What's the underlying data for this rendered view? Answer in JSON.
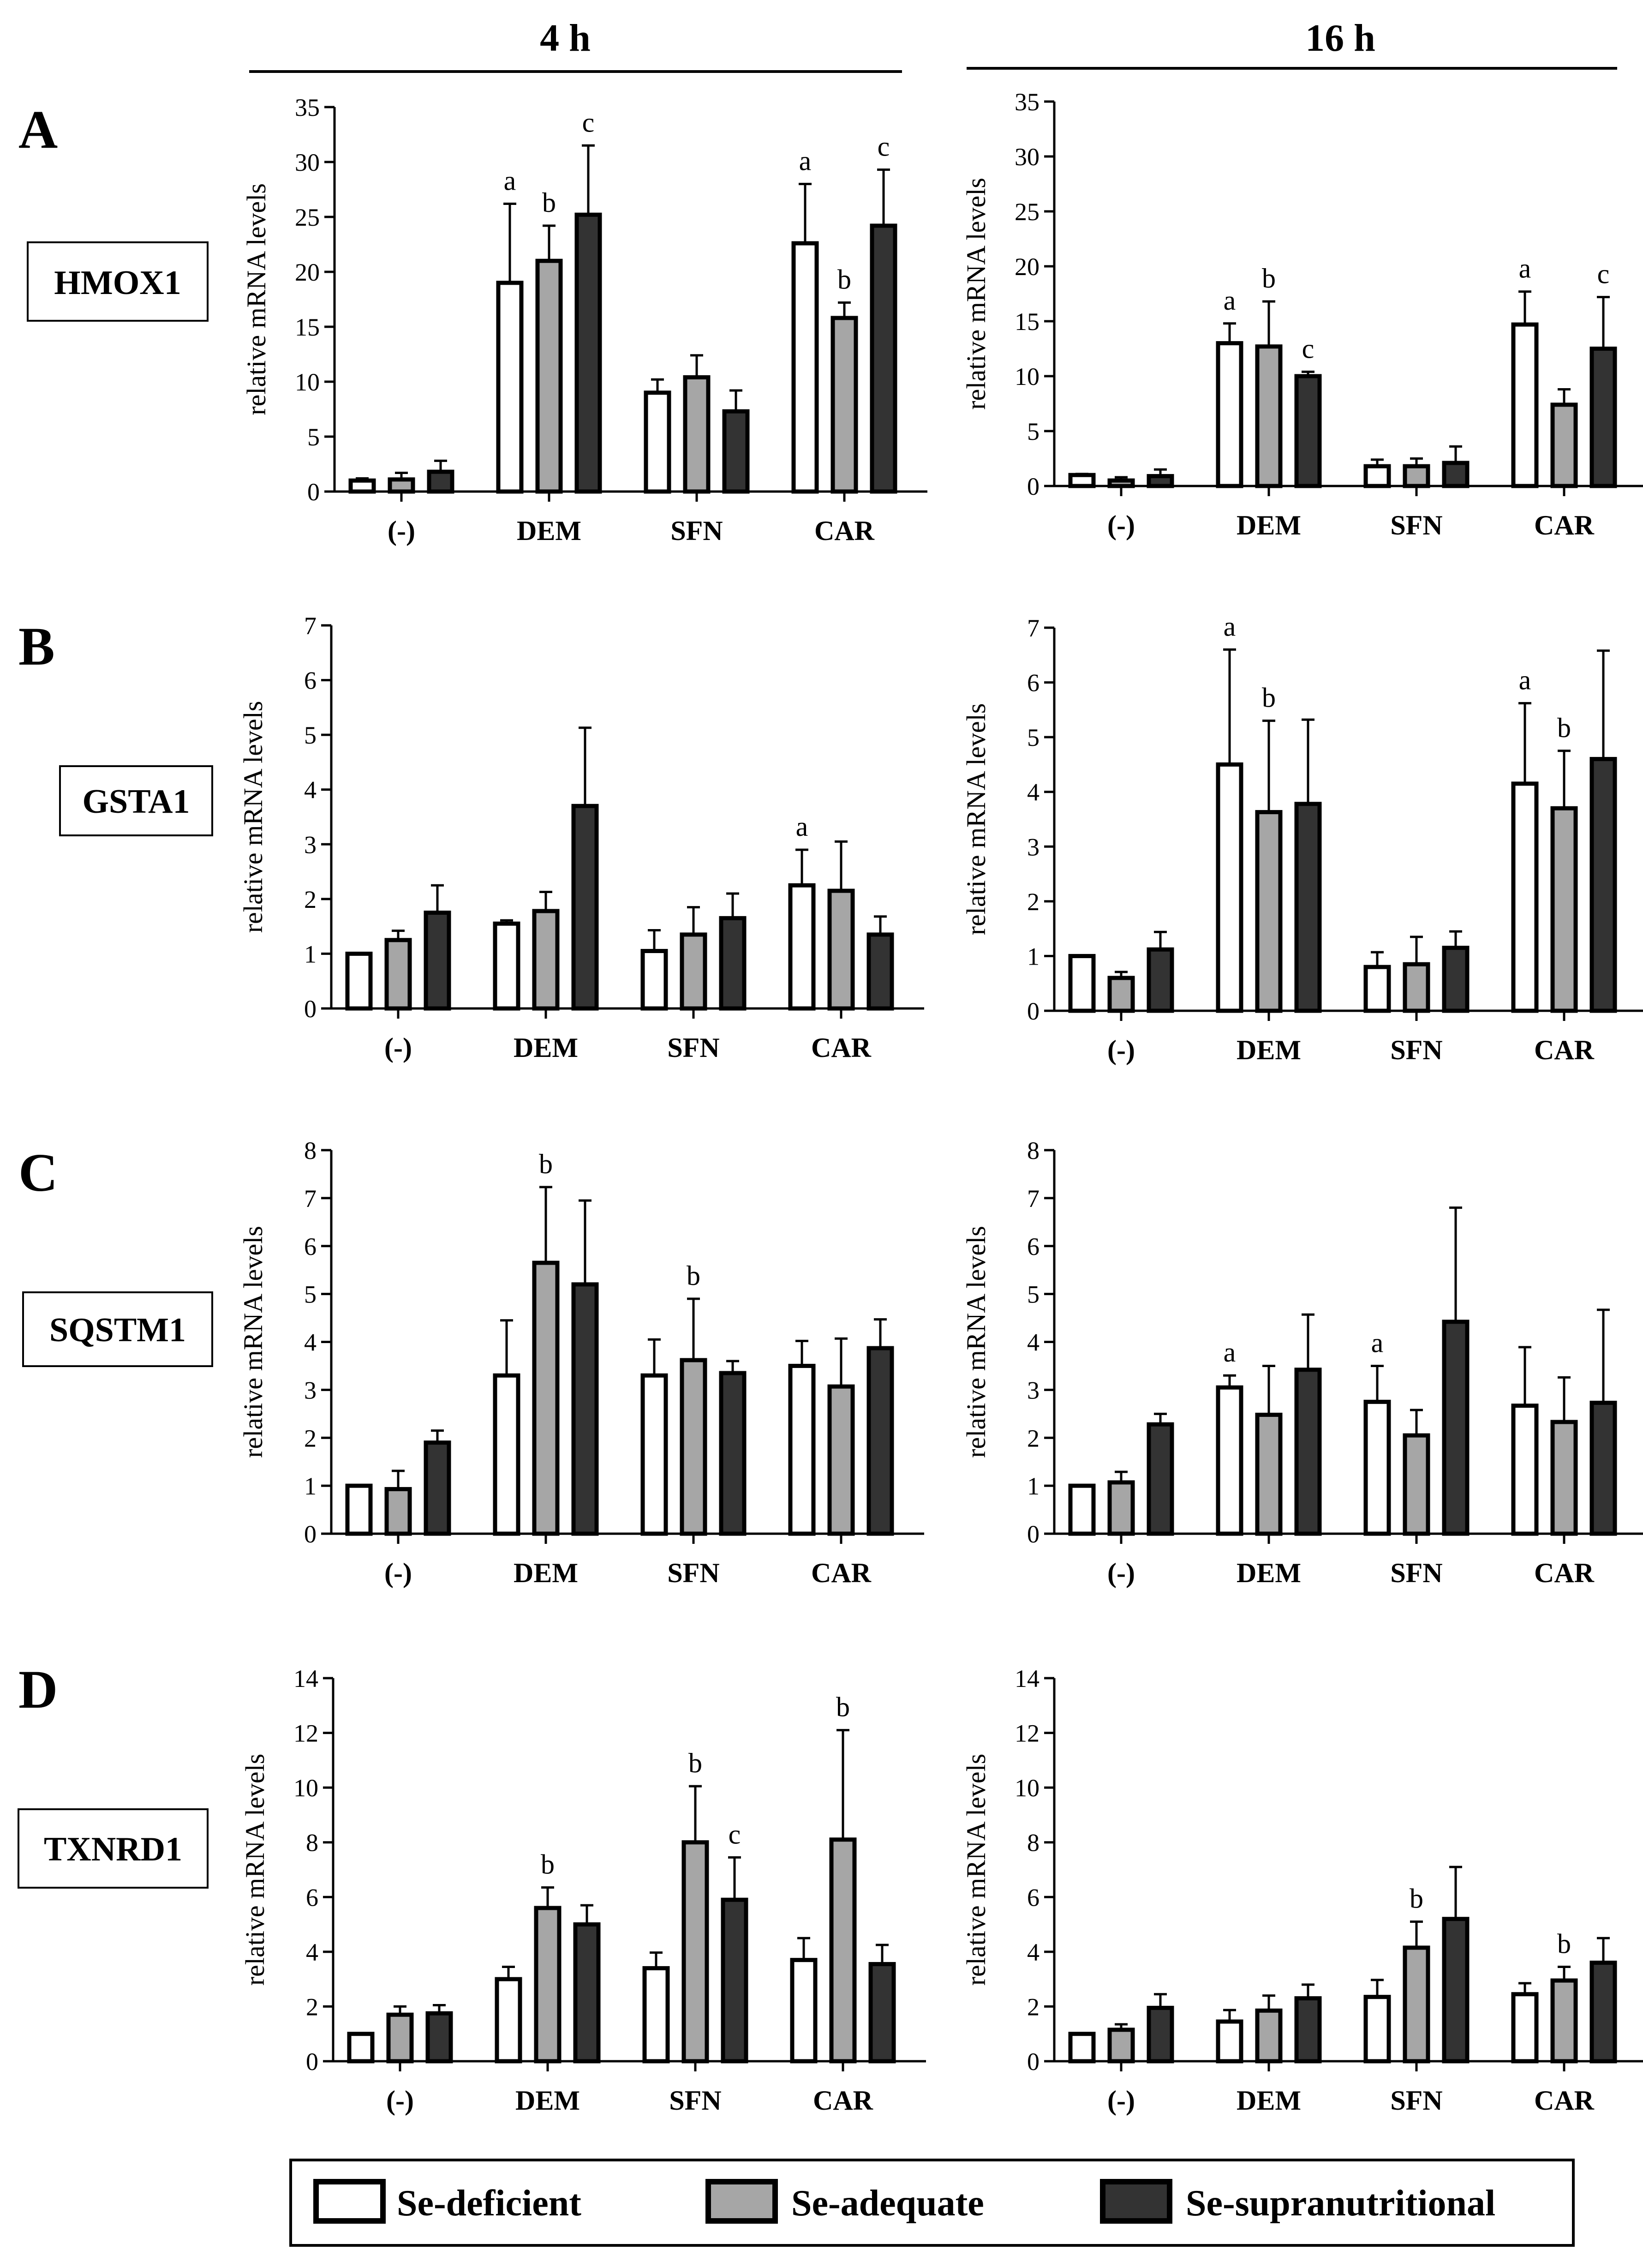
{
  "figure": {
    "columns": [
      "4 h",
      "16 h"
    ],
    "panels": [
      "A",
      "B",
      "C",
      "D"
    ],
    "genes": [
      "HMOX1",
      "GSTA1",
      "SQSTM1",
      "TXNRD1"
    ],
    "colors": {
      "deficient": "#ffffff",
      "adequate": "#a6a6a6",
      "supranutritional": "#333333",
      "stroke": "#000000"
    }
  },
  "legend": {
    "items": [
      {
        "label": "Se-deficient",
        "color": "#ffffff"
      },
      {
        "label": "Se-adequate",
        "color": "#a6a6a6"
      },
      {
        "label": "Se-supranutritional",
        "color": "#333333"
      }
    ]
  },
  "chart_data": [
    {
      "type": "bar",
      "panel": "A",
      "gene": "HMOX1",
      "time": "4 h",
      "ylabel": "relative mRNA levels",
      "ylim": [
        0,
        35
      ],
      "yticks": [
        0,
        5,
        10,
        15,
        20,
        25,
        30,
        35
      ],
      "categories": [
        "(-)",
        "DEM",
        "SFN",
        "CAR"
      ],
      "series": [
        {
          "name": "Se-deficient",
          "values": [
            1.0,
            19.0,
            9.0,
            22.6
          ],
          "errors": [
            0.2,
            7.2,
            1.2,
            5.4
          ],
          "labels": [
            "",
            "a",
            "",
            "a"
          ]
        },
        {
          "name": "Se-adequate",
          "values": [
            1.1,
            21.0,
            10.4,
            15.8
          ],
          "errors": [
            0.6,
            3.2,
            2.0,
            1.4
          ],
          "labels": [
            "",
            "b",
            "",
            "b"
          ]
        },
        {
          "name": "Se-supranutritional",
          "values": [
            1.8,
            25.2,
            7.3,
            24.2
          ],
          "errors": [
            1.0,
            6.3,
            1.9,
            5.1
          ],
          "labels": [
            "",
            "c",
            "",
            "c"
          ]
        }
      ]
    },
    {
      "type": "bar",
      "panel": "A",
      "gene": "HMOX1",
      "time": "16 h",
      "ylabel": "relative mRNA levels",
      "ylim": [
        0,
        35
      ],
      "yticks": [
        0,
        5,
        10,
        15,
        20,
        25,
        30,
        35
      ],
      "categories": [
        "(-)",
        "DEM",
        "SFN",
        "CAR"
      ],
      "series": [
        {
          "name": "Se-deficient",
          "values": [
            1.0,
            13.0,
            1.8,
            14.7
          ],
          "errors": [
            0.1,
            1.8,
            0.6,
            3.0
          ],
          "labels": [
            "",
            "a",
            "",
            "a"
          ]
        },
        {
          "name": "Se-adequate",
          "values": [
            0.5,
            12.7,
            1.8,
            7.4
          ],
          "errors": [
            0.3,
            4.1,
            0.7,
            1.4
          ],
          "labels": [
            "",
            "b",
            "",
            ""
          ]
        },
        {
          "name": "Se-supranutritional",
          "values": [
            0.9,
            10.0,
            2.1,
            12.5
          ],
          "errors": [
            0.6,
            0.4,
            1.5,
            4.7
          ],
          "labels": [
            "",
            "c",
            "",
            "c"
          ]
        }
      ]
    },
    {
      "type": "bar",
      "panel": "B",
      "gene": "GSTA1",
      "time": "4 h",
      "ylabel": "relative mRNA levels",
      "ylim": [
        0,
        7
      ],
      "yticks": [
        0,
        1,
        2,
        3,
        4,
        5,
        6,
        7
      ],
      "categories": [
        "(-)",
        "DEM",
        "SFN",
        "CAR"
      ],
      "series": [
        {
          "name": "Se-deficient",
          "values": [
            1.0,
            1.55,
            1.05,
            2.25
          ],
          "errors": [
            0.0,
            0.06,
            0.38,
            0.65
          ],
          "labels": [
            "",
            "",
            "",
            "a"
          ]
        },
        {
          "name": "Se-adequate",
          "values": [
            1.25,
            1.78,
            1.35,
            2.15
          ],
          "errors": [
            0.17,
            0.35,
            0.5,
            0.9
          ],
          "labels": [
            "",
            "",
            "",
            ""
          ]
        },
        {
          "name": "Se-supranutritional",
          "values": [
            1.75,
            3.7,
            1.65,
            1.35
          ],
          "errors": [
            0.5,
            1.43,
            0.45,
            0.33
          ],
          "labels": [
            "",
            "",
            "",
            ""
          ]
        }
      ]
    },
    {
      "type": "bar",
      "panel": "B",
      "gene": "GSTA1",
      "time": "16 h",
      "ylabel": "relative mRNA levels",
      "ylim": [
        0,
        7
      ],
      "yticks": [
        0,
        1,
        2,
        3,
        4,
        5,
        6,
        7
      ],
      "categories": [
        "(-)",
        "DEM",
        "SFN",
        "CAR"
      ],
      "series": [
        {
          "name": "Se-deficient",
          "values": [
            1.0,
            4.5,
            0.8,
            4.15
          ],
          "errors": [
            0.0,
            2.1,
            0.27,
            1.47
          ],
          "labels": [
            "",
            "a",
            "",
            "a"
          ]
        },
        {
          "name": "Se-adequate",
          "values": [
            0.6,
            3.63,
            0.85,
            3.7
          ],
          "errors": [
            0.11,
            1.67,
            0.5,
            1.05
          ],
          "labels": [
            "",
            "b",
            "",
            "b"
          ]
        },
        {
          "name": "Se-supranutritional",
          "values": [
            1.12,
            3.78,
            1.15,
            4.6
          ],
          "errors": [
            0.32,
            1.54,
            0.3,
            1.98
          ],
          "labels": [
            "",
            "",
            "",
            ""
          ]
        }
      ]
    },
    {
      "type": "bar",
      "panel": "C",
      "gene": "SQSTM1",
      "time": "4 h",
      "ylabel": "relative mRNA levels",
      "ylim": [
        0,
        8
      ],
      "yticks": [
        0,
        1,
        2,
        3,
        4,
        5,
        6,
        7,
        8
      ],
      "categories": [
        "(-)",
        "DEM",
        "SFN",
        "CAR"
      ],
      "series": [
        {
          "name": "Se-deficient",
          "values": [
            1.0,
            3.3,
            3.3,
            3.5
          ],
          "errors": [
            0.0,
            1.15,
            0.75,
            0.52
          ],
          "labels": [
            "",
            "",
            "",
            ""
          ]
        },
        {
          "name": "Se-adequate",
          "values": [
            0.93,
            5.65,
            3.62,
            3.07
          ],
          "errors": [
            0.38,
            1.58,
            1.28,
            1.0
          ],
          "labels": [
            "",
            "b",
            "b",
            ""
          ]
        },
        {
          "name": "Se-supranutritional",
          "values": [
            1.9,
            5.2,
            3.35,
            3.87
          ],
          "errors": [
            0.25,
            1.75,
            0.25,
            0.6
          ],
          "labels": [
            "",
            "",
            "",
            ""
          ]
        }
      ]
    },
    {
      "type": "bar",
      "panel": "C",
      "gene": "SQSTM1",
      "time": "16 h",
      "ylabel": "relative mRNA levels",
      "ylim": [
        0,
        8
      ],
      "yticks": [
        0,
        1,
        2,
        3,
        4,
        5,
        6,
        7,
        8
      ],
      "categories": [
        "(-)",
        "DEM",
        "SFN",
        "CAR"
      ],
      "series": [
        {
          "name": "Se-deficient",
          "values": [
            1.0,
            3.05,
            2.75,
            2.67
          ],
          "errors": [
            0.0,
            0.25,
            0.75,
            1.22
          ],
          "labels": [
            "",
            "a",
            "a",
            ""
          ]
        },
        {
          "name": "Se-adequate",
          "values": [
            1.07,
            2.48,
            2.05,
            2.33
          ],
          "errors": [
            0.22,
            1.02,
            0.53,
            0.93
          ],
          "labels": [
            "",
            "",
            "",
            ""
          ]
        },
        {
          "name": "Se-supranutritional",
          "values": [
            2.28,
            3.42,
            4.42,
            2.73
          ],
          "errors": [
            0.22,
            1.15,
            2.38,
            1.94
          ],
          "labels": [
            "",
            "",
            "",
            ""
          ]
        }
      ]
    },
    {
      "type": "bar",
      "panel": "D",
      "gene": "TXNRD1",
      "time": "4 h",
      "ylabel": "relative mRNA levels",
      "ylim": [
        0,
        14
      ],
      "yticks": [
        0,
        2,
        4,
        6,
        8,
        10,
        12,
        14
      ],
      "categories": [
        "(-)",
        "DEM",
        "SFN",
        "CAR"
      ],
      "series": [
        {
          "name": "Se-deficient",
          "values": [
            1.0,
            3.0,
            3.4,
            3.7
          ],
          "errors": [
            0.0,
            0.45,
            0.57,
            0.8
          ],
          "labels": [
            "",
            "",
            "",
            ""
          ]
        },
        {
          "name": "Se-adequate",
          "values": [
            1.7,
            5.6,
            8.0,
            8.1
          ],
          "errors": [
            0.3,
            0.75,
            2.05,
            4.0
          ],
          "labels": [
            "",
            "b",
            "b",
            "b"
          ]
        },
        {
          "name": "Se-supranutritional",
          "values": [
            1.75,
            5.0,
            5.9,
            3.55
          ],
          "errors": [
            0.3,
            0.7,
            1.55,
            0.7
          ],
          "labels": [
            "",
            "",
            "c",
            ""
          ]
        }
      ]
    },
    {
      "type": "bar",
      "panel": "D",
      "gene": "TXNRD1",
      "time": "16 h",
      "ylabel": "relative mRNA levels",
      "ylim": [
        0,
        14
      ],
      "yticks": [
        0,
        2,
        4,
        6,
        8,
        10,
        12,
        14
      ],
      "categories": [
        "(-)",
        "DEM",
        "SFN",
        "CAR"
      ],
      "series": [
        {
          "name": "Se-deficient",
          "values": [
            1.0,
            1.45,
            2.35,
            2.45
          ],
          "errors": [
            0.0,
            0.42,
            0.62,
            0.4
          ],
          "labels": [
            "",
            "",
            "",
            ""
          ]
        },
        {
          "name": "Se-adequate",
          "values": [
            1.15,
            1.85,
            4.15,
            2.95
          ],
          "errors": [
            0.2,
            0.55,
            0.95,
            0.5
          ],
          "labels": [
            "",
            "",
            "b",
            "b"
          ]
        },
        {
          "name": "Se-supranutritional",
          "values": [
            1.95,
            2.3,
            5.2,
            3.6
          ],
          "errors": [
            0.5,
            0.5,
            1.9,
            0.9
          ],
          "labels": [
            "",
            "",
            "",
            ""
          ]
        }
      ]
    }
  ]
}
